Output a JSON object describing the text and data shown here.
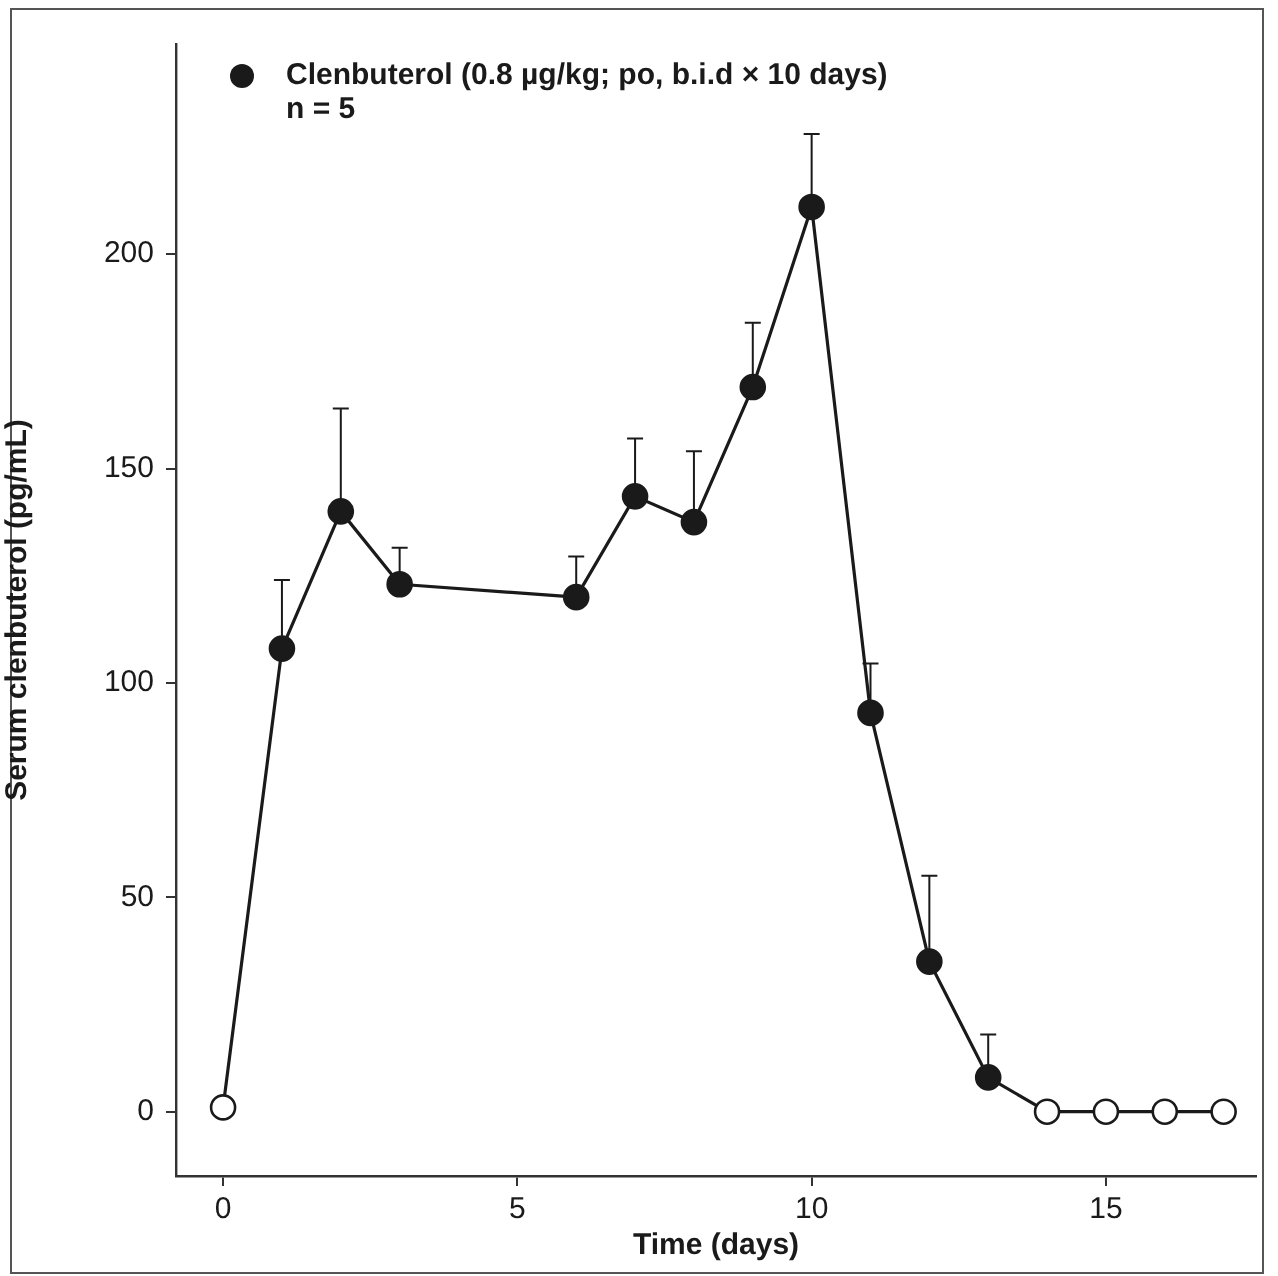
{
  "chart_data": {
    "type": "line",
    "xlabel": "Time (days)",
    "ylabel": "Serum clenbuterol (pg/mL)",
    "xlim": [
      -0.8,
      17.55
    ],
    "xticks": [
      0,
      5,
      10,
      15
    ],
    "ylim": [
      -15,
      249
    ],
    "yticks": [
      0,
      50,
      100,
      150,
      200
    ],
    "legend": "top left",
    "marker": "circle",
    "line_style": "solid",
    "grid": false,
    "annotations": [
      "n = 5"
    ],
    "series": [
      {
        "name": "Clenbuterol (0.8 µg/kg; po, b.i.d × 10 days)",
        "color": "#1a1a1a",
        "x": [
          0,
          1,
          2,
          3,
          6,
          7,
          8,
          9,
          10,
          11,
          12,
          13,
          14,
          15,
          16,
          17
        ],
        "values": [
          1,
          108,
          140,
          123,
          120,
          143.5,
          137.5,
          169,
          211,
          93,
          35,
          8,
          0,
          0,
          0,
          0
        ],
        "colors": [
          "#ffffff",
          "#1a1a1a",
          "#1a1a1a",
          "#1a1a1a",
          "#1a1a1a",
          "#1a1a1a",
          "#1a1a1a",
          "#1a1a1a",
          "#1a1a1a",
          "#1a1a1a",
          "#1a1a1a",
          "#1a1a1a",
          "#ffffff",
          "#ffffff",
          "#ffffff",
          "#ffffff"
        ],
        "errors": [
          null,
          [
            108,
            124
          ],
          [
            140,
            164
          ],
          [
            123,
            131.5
          ],
          [
            120,
            129.5
          ],
          [
            143.5,
            157
          ],
          [
            137.5,
            154
          ],
          [
            169,
            184
          ],
          [
            211,
            228
          ],
          [
            93,
            104.5
          ],
          [
            35,
            55
          ],
          [
            8,
            18
          ],
          null,
          null,
          null,
          null
        ]
      }
    ]
  }
}
